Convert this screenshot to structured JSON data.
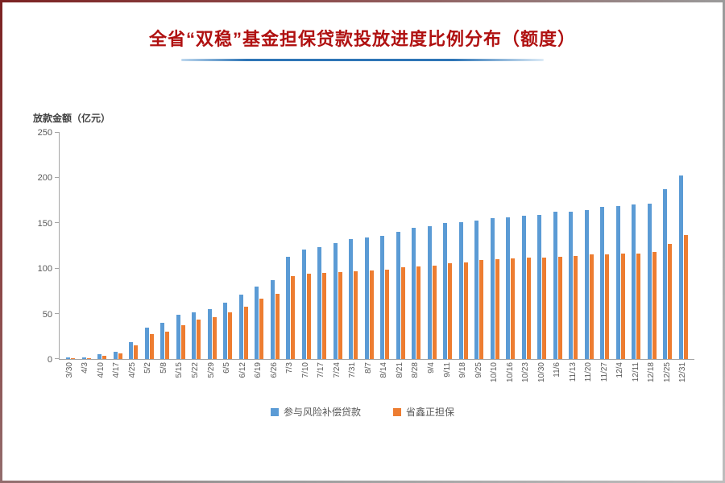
{
  "title": "全省“双稳”基金担保贷款投放进度比例分布（额度）",
  "chart_data": {
    "type": "bar",
    "title": "全省“双稳”基金担保贷款投放进度比例分布（额度）",
    "xlabel": "",
    "ylabel": "放款金额（亿元）",
    "ylim": [
      0,
      250
    ],
    "yticks": [
      0,
      50,
      100,
      150,
      200,
      250
    ],
    "grid": false,
    "legend_position": "bottom",
    "categories": [
      "3/30",
      "4/3",
      "4/10",
      "4/17",
      "4/25",
      "5/2",
      "5/8",
      "5/15",
      "5/22",
      "5/29",
      "6/5",
      "6/12",
      "6/19",
      "6/26",
      "7/3",
      "7/10",
      "7/17",
      "7/24",
      "7/31",
      "8/7",
      "8/14",
      "8/21",
      "8/28",
      "9/4",
      "9/11",
      "9/18",
      "9/25",
      "10/10",
      "10/16",
      "10/23",
      "10/30",
      "11/6",
      "11/13",
      "11/20",
      "11/27",
      "12/4",
      "12/11",
      "12/18",
      "12/25",
      "12/31"
    ],
    "series": [
      {
        "name": "参与风险补偿贷款",
        "color": "#5b9bd5",
        "values": [
          2,
          2,
          5,
          8,
          19,
          35,
          40,
          49,
          52,
          55,
          62,
          71,
          80,
          87,
          113,
          121,
          124,
          128,
          133,
          134,
          136,
          141,
          145,
          147,
          150,
          151,
          153,
          156,
          157,
          158,
          159,
          163,
          163,
          165,
          168,
          169,
          171,
          172,
          188,
          203
        ]
      },
      {
        "name": "省鑫正担保",
        "color": "#ed7d31",
        "values": [
          1,
          1,
          4,
          6,
          15,
          28,
          30,
          37,
          44,
          46,
          52,
          58,
          67,
          72,
          92,
          94,
          95,
          96,
          97,
          98,
          99,
          101,
          102,
          103,
          106,
          107,
          109,
          110,
          111,
          112,
          112,
          113,
          114,
          116,
          116,
          117,
          117,
          118,
          127,
          137
        ]
      }
    ]
  },
  "colors": {
    "title": "#b01111",
    "divider": "#2e75b6",
    "axis": "#a6a6a6",
    "tick_text": "#595959"
  }
}
